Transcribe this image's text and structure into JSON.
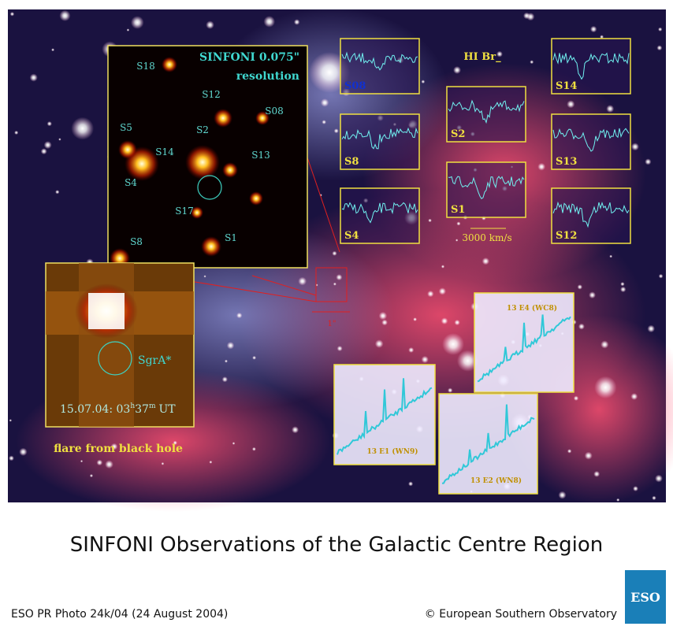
{
  "title": "SINFONI Observations of the Galactic Centre Region",
  "credit": "ESO PR Photo 24k/04 (24 August 2004)",
  "copyright": "© European Southern Observatory",
  "logo": "ESO",
  "sinfoni_panel": {
    "title": "SINFONI 0.075\"",
    "subtitle": "resolution",
    "stars": [
      "S18",
      "S12",
      "S08",
      "S5",
      "S2",
      "S13",
      "S14",
      "S4",
      "S17",
      "S8",
      "S1"
    ]
  },
  "flare_panel": {
    "source": "SgrA*",
    "time": {
      "date": "15.07.04: 03",
      "h": "h",
      "min": "37",
      "m": "m",
      "zone": "UT"
    },
    "caption": "flare from black hole"
  },
  "scale_label": "1\"",
  "spectra": {
    "line": "HI Br_",
    "scale": "3000 km/s",
    "panels": [
      "S08",
      "S8",
      "S4",
      "S2",
      "S1",
      "S14",
      "S13",
      "S12"
    ]
  },
  "spectra_panels": [
    "13 E4 (WC8)",
    "13 E1 (WN9)",
    "13 E2 (WN8)"
  ]
}
